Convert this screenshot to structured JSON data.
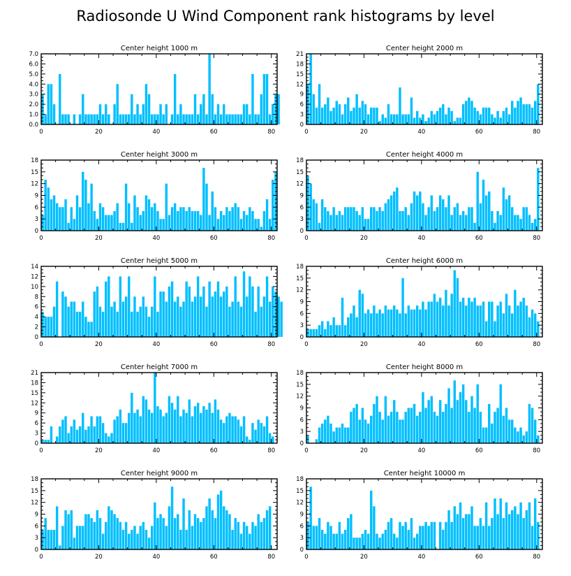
{
  "title": "Radiosonde U Wind Component rank histograms by level",
  "colors": {
    "bar": "#00bfff",
    "axis": "#000000",
    "background": "#ffffff"
  },
  "chart_data": [
    {
      "type": "bar",
      "title": "Center height 1000 m",
      "xlabel": "",
      "ylabel": "",
      "xlim": [
        0,
        82
      ],
      "ylim": [
        0,
        7
      ],
      "xticks": [
        0,
        20,
        40,
        60,
        80
      ],
      "yticks": [
        0,
        1,
        2,
        3,
        4,
        5,
        6,
        7
      ],
      "ytick_labels": [
        "0.0",
        "1.0",
        "2.0",
        "3.0",
        "4.0",
        "5.0",
        "6.0",
        "7.0"
      ],
      "values": [
        3,
        1,
        4,
        4,
        2,
        0,
        5,
        1,
        1,
        1,
        0,
        1,
        0,
        1,
        3,
        1,
        1,
        1,
        1,
        1,
        2,
        1,
        2,
        1,
        0,
        2,
        4,
        1,
        1,
        1,
        1,
        3,
        1,
        2,
        1,
        2,
        4,
        3,
        1,
        1,
        1,
        2,
        1,
        2,
        0,
        1,
        5,
        1,
        2,
        1,
        1,
        1,
        1,
        3,
        1,
        2,
        3,
        1,
        7,
        3,
        1,
        2,
        1,
        2,
        1,
        1,
        1,
        1,
        1,
        1,
        2,
        2,
        1,
        5,
        1,
        1,
        3,
        5,
        5,
        1,
        2,
        3,
        3
      ]
    },
    {
      "type": "bar",
      "title": "Center height 2000 m",
      "xlabel": "",
      "ylabel": "",
      "xlim": [
        0,
        82
      ],
      "ylim": [
        0,
        21
      ],
      "xticks": [
        0,
        20,
        40,
        60,
        80
      ],
      "yticks": [
        0,
        3,
        6,
        9,
        12,
        15,
        18,
        21
      ],
      "ytick_labels": [
        "0",
        "3",
        "6",
        "9",
        "12",
        "15",
        "18",
        "21"
      ],
      "values": [
        12,
        21,
        9,
        5,
        12,
        5,
        6,
        8,
        4,
        5,
        7,
        6,
        3,
        6,
        8,
        4,
        5,
        9,
        5,
        7,
        6,
        3,
        5,
        5,
        5,
        1,
        3,
        2,
        6,
        3,
        3,
        3,
        11,
        3,
        3,
        3,
        8,
        2,
        4,
        2,
        3,
        1,
        2,
        4,
        3,
        4,
        5,
        6,
        3,
        5,
        4,
        1,
        2,
        2,
        6,
        7,
        8,
        7,
        5,
        4,
        3,
        5,
        5,
        5,
        3,
        2,
        4,
        2,
        4,
        5,
        3,
        7,
        5,
        7,
        8,
        6,
        6,
        6,
        5,
        7,
        12
      ]
    },
    {
      "type": "bar",
      "title": "Center height 3000 m",
      "xlabel": "",
      "ylabel": "",
      "xlim": [
        0,
        82
      ],
      "ylim": [
        0,
        18
      ],
      "xticks": [
        0,
        20,
        40,
        60,
        80
      ],
      "yticks": [
        0,
        3,
        6,
        9,
        12,
        15,
        18
      ],
      "ytick_labels": [
        "0",
        "3",
        "6",
        "9",
        "12",
        "15",
        "18"
      ],
      "values": [
        4,
        13,
        11,
        8,
        9,
        7,
        6,
        6,
        8,
        2,
        6,
        3,
        9,
        6,
        15,
        13,
        7,
        12,
        5,
        3,
        7,
        6,
        4,
        4,
        4,
        5,
        7,
        2,
        2,
        12,
        7,
        2,
        9,
        6,
        4,
        5,
        9,
        8,
        6,
        7,
        5,
        3,
        3,
        12,
        4,
        6,
        7,
        5,
        6,
        6,
        5,
        6,
        5,
        5,
        5,
        4,
        16,
        12,
        4,
        10,
        6,
        3,
        5,
        4,
        6,
        5,
        6,
        7,
        6,
        3,
        5,
        4,
        6,
        5,
        3,
        3,
        1,
        5,
        8,
        3,
        13,
        15
      ]
    },
    {
      "type": "bar",
      "title": "Center height 4000 m",
      "xlabel": "",
      "ylabel": "",
      "xlim": [
        0,
        82
      ],
      "ylim": [
        0,
        18
      ],
      "xticks": [
        0,
        20,
        40,
        60,
        80
      ],
      "yticks": [
        0,
        3,
        6,
        9,
        12,
        15,
        18
      ],
      "ytick_labels": [
        "0",
        "3",
        "6",
        "9",
        "12",
        "15",
        "18"
      ],
      "values": [
        14,
        12,
        8,
        7,
        2,
        8,
        6,
        5,
        4,
        6,
        4,
        5,
        4,
        6,
        6,
        6,
        6,
        5,
        4,
        6,
        3,
        3,
        6,
        6,
        5,
        6,
        5,
        7,
        8,
        9,
        10,
        11,
        5,
        5,
        6,
        4,
        7,
        10,
        9,
        10,
        7,
        4,
        6,
        9,
        5,
        6,
        9,
        8,
        6,
        9,
        4,
        6,
        7,
        4,
        5,
        4,
        6,
        6,
        2,
        15,
        7,
        13,
        9,
        10,
        5,
        2,
        5,
        4,
        11,
        8,
        9,
        6,
        4,
        4,
        3,
        6,
        6,
        4,
        2,
        3,
        16
      ]
    },
    {
      "type": "bar",
      "title": "Center height 5000 m",
      "xlabel": "",
      "ylabel": "",
      "xlim": [
        0,
        82
      ],
      "ylim": [
        0,
        14
      ],
      "xticks": [
        0,
        20,
        40,
        60,
        80
      ],
      "yticks": [
        0,
        2,
        4,
        6,
        8,
        10,
        12,
        14
      ],
      "ytick_labels": [
        "0",
        "2",
        "4",
        "6",
        "8",
        "10",
        "12",
        "14"
      ],
      "values": [
        5,
        4,
        4,
        4,
        6,
        11,
        0,
        9,
        8,
        6,
        7,
        7,
        5,
        5,
        7,
        4,
        3,
        3,
        9,
        10,
        6,
        5,
        11,
        12,
        6,
        7,
        5,
        12,
        7,
        8,
        12,
        5,
        8,
        5,
        6,
        8,
        6,
        4,
        6,
        12,
        5,
        9,
        9,
        7,
        10,
        11,
        7,
        8,
        6,
        7,
        11,
        10,
        7,
        8,
        12,
        8,
        10,
        6,
        11,
        8,
        9,
        11,
        8,
        9,
        10,
        6,
        7,
        12,
        7,
        6,
        13,
        8,
        12,
        10,
        5,
        10,
        6,
        8,
        12,
        7,
        10,
        9,
        8,
        7
      ]
    },
    {
      "type": "bar",
      "title": "Center height 6000 m",
      "xlabel": "",
      "ylabel": "",
      "xlim": [
        0,
        82
      ],
      "ylim": [
        0,
        18
      ],
      "xticks": [
        0,
        20,
        40,
        60,
        80
      ],
      "yticks": [
        0,
        3,
        6,
        9,
        12,
        15,
        18
      ],
      "ytick_labels": [
        "0",
        "3",
        "6",
        "9",
        "12",
        "15",
        "18"
      ],
      "values": [
        2,
        2,
        2,
        2,
        3,
        4,
        2,
        4,
        3,
        5,
        3,
        3,
        10,
        3,
        5,
        6,
        8,
        5,
        12,
        11,
        6,
        7,
        6,
        8,
        6,
        7,
        6,
        8,
        7,
        7,
        8,
        7,
        6,
        15,
        6,
        8,
        7,
        7,
        8,
        7,
        9,
        7,
        9,
        9,
        11,
        9,
        10,
        8,
        12,
        8,
        11,
        17,
        15,
        9,
        10,
        8,
        10,
        9,
        10,
        8,
        8,
        9,
        4,
        9,
        9,
        4,
        8,
        9,
        6,
        11,
        8,
        6,
        12,
        8,
        9,
        10,
        8,
        5,
        7,
        6,
        4
      ]
    },
    {
      "type": "bar",
      "title": "Center height 7000 m",
      "xlabel": "",
      "ylabel": "",
      "xlim": [
        0,
        82
      ],
      "ylim": [
        0,
        21
      ],
      "xticks": [
        0,
        20,
        40,
        60,
        80
      ],
      "yticks": [
        0,
        3,
        6,
        9,
        12,
        15,
        18,
        21
      ],
      "ytick_labels": [
        "0",
        "3",
        "6",
        "9",
        "12",
        "15",
        "18",
        "21"
      ],
      "values": [
        1,
        1,
        1,
        5,
        0,
        2,
        5,
        7,
        8,
        3,
        5,
        7,
        4,
        5,
        9,
        4,
        5,
        8,
        5,
        8,
        8,
        6,
        3,
        2,
        3,
        7,
        8,
        10,
        6,
        6,
        9,
        15,
        9,
        10,
        8,
        14,
        13,
        10,
        9,
        21,
        11,
        10,
        8,
        9,
        14,
        12,
        10,
        14,
        8,
        10,
        9,
        13,
        8,
        11,
        12,
        9,
        11,
        10,
        12,
        9,
        13,
        10,
        7,
        6,
        8,
        9,
        8,
        8,
        7,
        5,
        8,
        2,
        1,
        6,
        4,
        7,
        6,
        5,
        8,
        3,
        2
      ]
    },
    {
      "type": "bar",
      "title": "Center height 8000 m",
      "xlabel": "",
      "ylabel": "",
      "xlim": [
        0,
        82
      ],
      "ylim": [
        0,
        18
      ],
      "xticks": [
        0,
        20,
        40,
        60,
        80
      ],
      "yticks": [
        0,
        3,
        6,
        9,
        12,
        15,
        18
      ],
      "ytick_labels": [
        "0",
        "3",
        "6",
        "9",
        "12",
        "15",
        "18"
      ],
      "values": [
        2,
        0,
        0,
        1,
        4,
        5,
        6,
        7,
        5,
        3,
        4,
        4,
        5,
        4,
        4,
        8,
        9,
        10,
        6,
        9,
        6,
        5,
        7,
        10,
        12,
        8,
        6,
        12,
        7,
        8,
        11,
        8,
        6,
        6,
        8,
        9,
        9,
        10,
        7,
        8,
        13,
        9,
        11,
        12,
        8,
        7,
        11,
        8,
        10,
        14,
        9,
        16,
        11,
        13,
        15,
        11,
        8,
        12,
        9,
        15,
        8,
        4,
        4,
        10,
        5,
        8,
        9,
        15,
        7,
        9,
        6,
        6,
        4,
        3,
        4,
        2,
        3,
        10,
        9,
        6,
        2
      ]
    },
    {
      "type": "bar",
      "title": "Center height 9000 m",
      "xlabel": "",
      "ylabel": "",
      "xlim": [
        0,
        82
      ],
      "ylim": [
        0,
        18
      ],
      "xticks": [
        0,
        20,
        40,
        60,
        80
      ],
      "yticks": [
        0,
        3,
        6,
        9,
        12,
        15,
        18
      ],
      "ytick_labels": [
        "0",
        "3",
        "6",
        "9",
        "12",
        "15",
        "18"
      ],
      "values": [
        5,
        8,
        5,
        5,
        5,
        11,
        1,
        6,
        10,
        9,
        10,
        3,
        6,
        6,
        6,
        9,
        9,
        8,
        7,
        10,
        8,
        4,
        7,
        11,
        10,
        9,
        8,
        7,
        5,
        7,
        4,
        5,
        6,
        4,
        6,
        7,
        5,
        3,
        6,
        12,
        8,
        9,
        8,
        6,
        11,
        16,
        8,
        9,
        5,
        13,
        5,
        10,
        6,
        9,
        8,
        7,
        8,
        11,
        13,
        10,
        8,
        14,
        15,
        11,
        10,
        9,
        5,
        8,
        7,
        4,
        7,
        6,
        4,
        7,
        6,
        9,
        7,
        8,
        10,
        11
      ]
    },
    {
      "type": "bar",
      "title": "Center height 10000 m",
      "xlabel": "",
      "ylabel": "",
      "xlim": [
        0,
        82
      ],
      "ylim": [
        0,
        18
      ],
      "xticks": [
        0,
        20,
        40,
        60,
        80
      ],
      "yticks": [
        0,
        3,
        6,
        9,
        12,
        15,
        18
      ],
      "ytick_labels": [
        "0",
        "3",
        "6",
        "9",
        "12",
        "15",
        "18"
      ],
      "values": [
        7,
        16,
        6,
        6,
        8,
        5,
        4,
        7,
        6,
        4,
        4,
        7,
        4,
        5,
        8,
        9,
        3,
        3,
        3,
        4,
        5,
        4,
        15,
        11,
        4,
        3,
        4,
        5,
        7,
        8,
        4,
        3,
        7,
        6,
        7,
        5,
        8,
        3,
        4,
        6,
        6,
        7,
        6,
        7,
        7,
        0,
        7,
        5,
        7,
        10,
        7,
        11,
        9,
        12,
        8,
        9,
        9,
        11,
        6,
        6,
        8,
        6,
        12,
        6,
        8,
        13,
        9,
        13,
        8,
        12,
        9,
        10,
        11,
        9,
        12,
        8,
        10,
        12,
        6,
        13,
        7
      ]
    }
  ]
}
